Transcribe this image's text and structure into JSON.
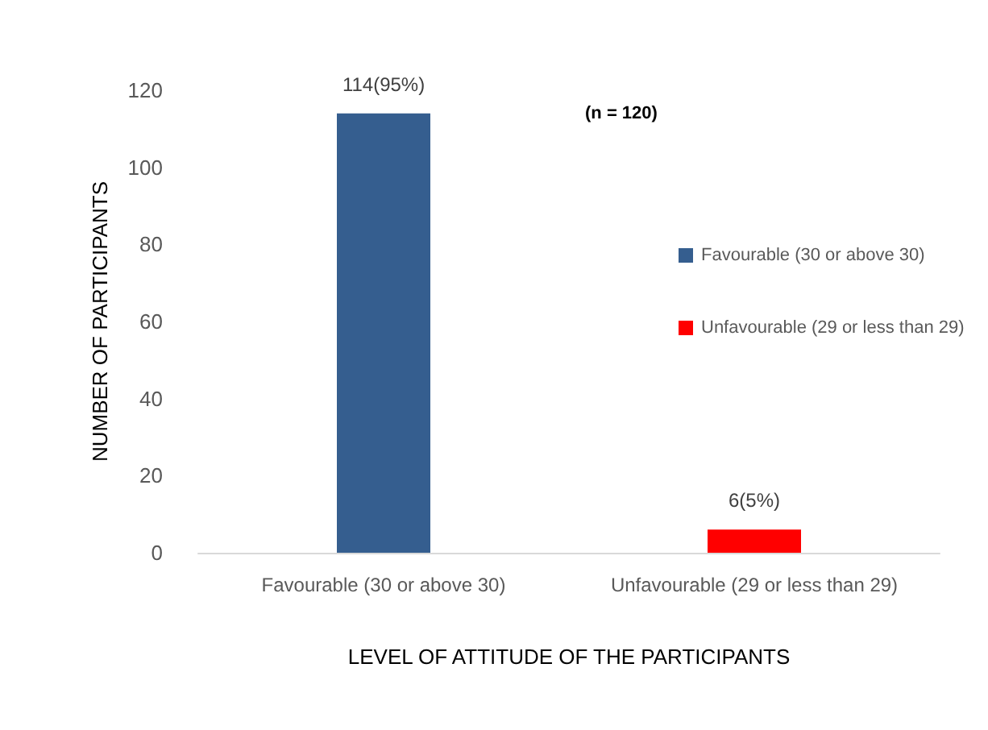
{
  "chart_data": {
    "type": "bar",
    "categories": [
      "Favourable (30 or above 30)",
      "Unfavourable (29 or less than 29)"
    ],
    "series": [
      {
        "name": "Favourable (30 or above 30)",
        "color": "#355e8f",
        "values": [
          114,
          null
        ],
        "value_labels": [
          "114(95%)",
          null
        ]
      },
      {
        "name": "Unfavourable (29 or less than 29)",
        "color": "#ff0000",
        "values": [
          null,
          6
        ],
        "value_labels": [
          null,
          "6(5%)"
        ]
      }
    ],
    "xlabel": "LEVEL OF ATTITUDE OF THE PARTICIPANTS",
    "ylabel": "NUMBER OF PARTICIPANTS",
    "ylim": [
      0,
      120
    ],
    "yticks": [
      0,
      20,
      40,
      60,
      80,
      100,
      120
    ],
    "grid": false,
    "legend": "right",
    "annotations": [
      "(n = 120)"
    ]
  }
}
